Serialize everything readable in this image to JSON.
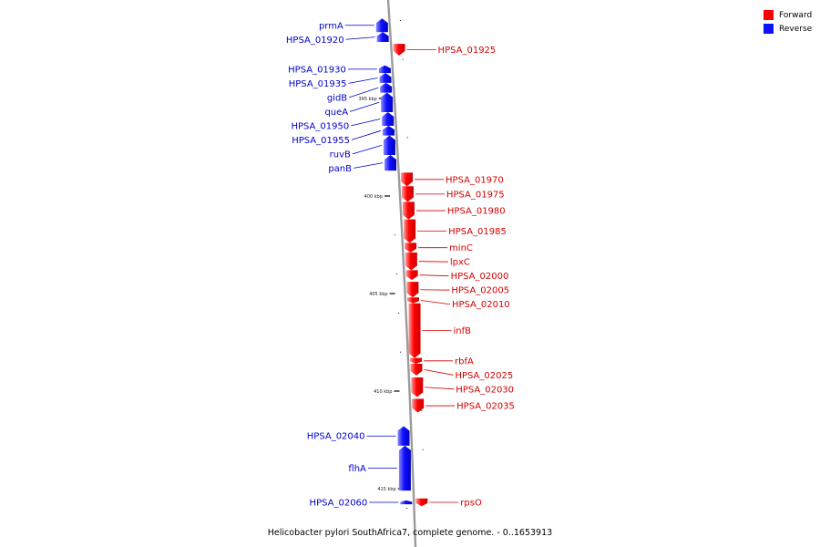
{
  "legend": {
    "forward_label": "Forward",
    "reverse_label": "Reverse",
    "forward_color": "#ff0000",
    "reverse_color": "#1010ff"
  },
  "caption": "Helicobacter pylori SouthAfrica7, complete genome. - 0..1653913",
  "ticks": [
    {
      "kbp": 395,
      "label": "395 kbp"
    },
    {
      "kbp": 400,
      "label": "400 kbp"
    },
    {
      "kbp": 405,
      "label": "405 kbp"
    },
    {
      "kbp": 410,
      "label": "410 kbp"
    },
    {
      "kbp": 415,
      "label": "415 kbp"
    }
  ],
  "genes": [
    {
      "name": "prmA",
      "strand": "reverse",
      "start_kbp": 390.9,
      "end_kbp": 391.6
    },
    {
      "name": "HPSA_01920",
      "strand": "reverse",
      "start_kbp": 391.6,
      "end_kbp": 392.1
    },
    {
      "name": "HPSA_01925",
      "strand": "forward",
      "start_kbp": 392.2,
      "end_kbp": 392.8
    },
    {
      "name": "HPSA_01930",
      "strand": "reverse",
      "start_kbp": 393.3,
      "end_kbp": 393.7
    },
    {
      "name": "HPSA_01935",
      "strand": "reverse",
      "start_kbp": 393.7,
      "end_kbp": 394.2
    },
    {
      "name": "gidB",
      "strand": "reverse",
      "start_kbp": 394.2,
      "end_kbp": 394.7
    },
    {
      "name": "queA",
      "strand": "reverse",
      "start_kbp": 394.7,
      "end_kbp": 395.7
    },
    {
      "name": "HPSA_01950",
      "strand": "reverse",
      "start_kbp": 395.7,
      "end_kbp": 396.4
    },
    {
      "name": "HPSA_01955",
      "strand": "reverse",
      "start_kbp": 396.4,
      "end_kbp": 396.9
    },
    {
      "name": "ruvB",
      "strand": "reverse",
      "start_kbp": 396.9,
      "end_kbp": 397.9
    },
    {
      "name": "panB",
      "strand": "reverse",
      "start_kbp": 397.9,
      "end_kbp": 398.7
    },
    {
      "name": "HPSA_01970",
      "strand": "forward",
      "start_kbp": 398.8,
      "end_kbp": 399.5
    },
    {
      "name": "HPSA_01975",
      "strand": "forward",
      "start_kbp": 399.5,
      "end_kbp": 400.3
    },
    {
      "name": "HPSA_01980",
      "strand": "forward",
      "start_kbp": 400.3,
      "end_kbp": 401.2
    },
    {
      "name": "HPSA_01985",
      "strand": "forward",
      "start_kbp": 401.2,
      "end_kbp": 402.4
    },
    {
      "name": "minC",
      "strand": "forward",
      "start_kbp": 402.4,
      "end_kbp": 402.9
    },
    {
      "name": "lpxC",
      "strand": "forward",
      "start_kbp": 402.9,
      "end_kbp": 403.8
    },
    {
      "name": "HPSA_02000",
      "strand": "forward",
      "start_kbp": 403.8,
      "end_kbp": 404.3
    },
    {
      "name": "HPSA_02005",
      "strand": "forward",
      "start_kbp": 404.4,
      "end_kbp": 405.2
    },
    {
      "name": "HPSA_02010",
      "strand": "forward",
      "start_kbp": 405.2,
      "end_kbp": 405.5
    },
    {
      "name": "infB",
      "strand": "forward",
      "start_kbp": 405.5,
      "end_kbp": 408.3
    },
    {
      "name": "rbfA",
      "strand": "forward",
      "start_kbp": 408.3,
      "end_kbp": 408.6
    },
    {
      "name": "HPSA_02025",
      "strand": "forward",
      "start_kbp": 408.6,
      "end_kbp": 409.2
    },
    {
      "name": "HPSA_02030",
      "strand": "forward",
      "start_kbp": 409.3,
      "end_kbp": 410.3
    },
    {
      "name": "HPSA_02035",
      "strand": "forward",
      "start_kbp": 410.4,
      "end_kbp": 411.1
    },
    {
      "name": "HPSA_02040",
      "strand": "reverse",
      "start_kbp": 411.8,
      "end_kbp": 412.8
    },
    {
      "name": "flhA",
      "strand": "reverse",
      "start_kbp": 412.8,
      "end_kbp": 415.1
    },
    {
      "name": "HPSA_02060",
      "strand": "reverse",
      "start_kbp": 415.6,
      "end_kbp": 415.8
    },
    {
      "name": "rpsO",
      "strand": "forward",
      "start_kbp": 415.5,
      "end_kbp": 415.9
    }
  ]
}
